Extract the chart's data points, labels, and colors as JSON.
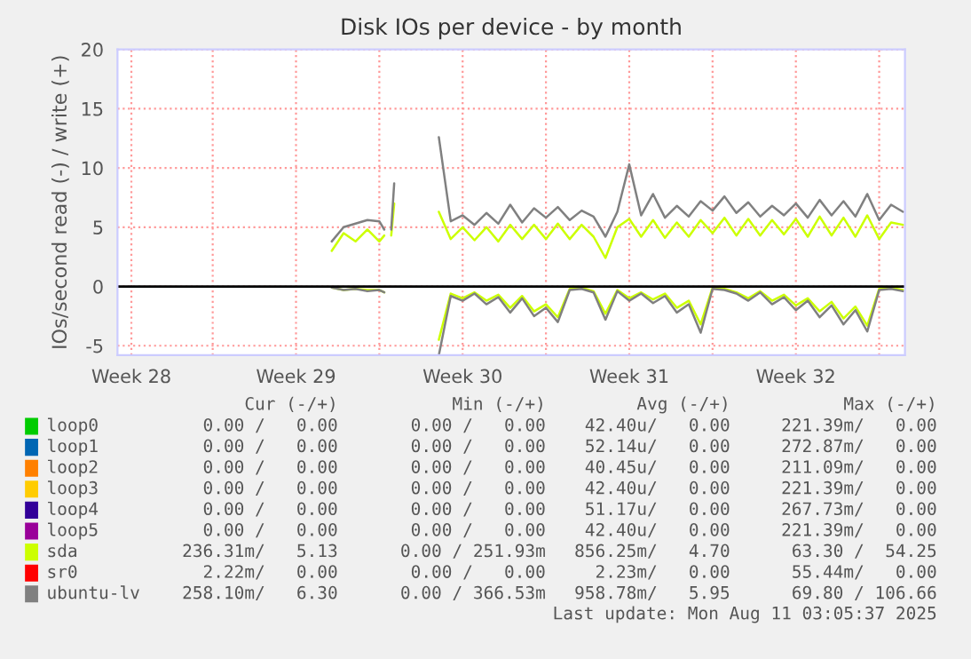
{
  "chart_data": {
    "type": "line",
    "title": "Disk IOs per device - by month",
    "ylabel": "IOs/second read (-) / write (+)",
    "x": [
      "2025-07-18T00:00",
      "2025-07-18T12:00",
      "2025-07-19T00:00",
      "2025-07-19T12:00",
      "2025-07-20T00:00",
      "2025-07-20T05:00",
      "2025-07-20T09:00",
      "2025-07-20T12:00",
      "2025-07-20T15:00",
      "2025-07-21T12:00",
      "2025-07-22T12:00",
      "2025-07-23T00:00",
      "2025-07-23T12:00",
      "2025-07-24T00:00",
      "2025-07-24T12:00",
      "2025-07-25T00:00",
      "2025-07-25T12:00",
      "2025-07-26T00:00",
      "2025-07-26T12:00",
      "2025-07-27T00:00",
      "2025-07-27T12:00",
      "2025-07-28T00:00",
      "2025-07-28T12:00",
      "2025-07-29T00:00",
      "2025-07-29T12:00",
      "2025-07-30T00:00",
      "2025-07-30T12:00",
      "2025-07-31T00:00",
      "2025-07-31T12:00",
      "2025-08-01T00:00",
      "2025-08-01T12:00",
      "2025-08-02T00:00",
      "2025-08-02T12:00",
      "2025-08-03T00:00",
      "2025-08-03T12:00",
      "2025-08-04T00:00",
      "2025-08-04T12:00",
      "2025-08-05T00:00",
      "2025-08-05T12:00",
      "2025-08-06T00:00",
      "2025-08-06T12:00",
      "2025-08-07T00:00",
      "2025-08-07T12:00",
      "2025-08-08T00:00",
      "2025-08-08T12:00",
      "2025-08-09T00:00",
      "2025-08-09T12:00",
      "2025-08-10T00:00",
      "2025-08-10T12:00",
      "2025-08-11T00:00"
    ],
    "series": [
      {
        "name": "loop0",
        "color": "#00cc00",
        "values": [
          null,
          null,
          null,
          null,
          null,
          null,
          null,
          null,
          null,
          null,
          null,
          null,
          null,
          null,
          null,
          null,
          null,
          null,
          null,
          null,
          null,
          null,
          null,
          null,
          null,
          null,
          null,
          null,
          null,
          null,
          null,
          null,
          null,
          null,
          null,
          null,
          null,
          null,
          null,
          null,
          null,
          null,
          null,
          null,
          null,
          null,
          null,
          null,
          null,
          null
        ]
      },
      {
        "name": "loop1",
        "color": "#0066b3",
        "values": [
          null,
          null,
          null,
          null,
          null,
          null,
          null,
          null,
          null,
          null,
          null,
          null,
          null,
          null,
          null,
          null,
          null,
          null,
          null,
          null,
          null,
          null,
          null,
          null,
          null,
          null,
          null,
          null,
          null,
          null,
          null,
          null,
          null,
          null,
          null,
          null,
          null,
          null,
          null,
          null,
          null,
          null,
          null,
          null,
          null,
          null,
          null,
          null,
          null,
          null
        ]
      },
      {
        "name": "loop2",
        "color": "#ff8000",
        "values": [
          null,
          null,
          null,
          null,
          null,
          null,
          null,
          null,
          null,
          null,
          null,
          null,
          null,
          null,
          null,
          null,
          null,
          null,
          null,
          null,
          null,
          null,
          null,
          null,
          null,
          null,
          null,
          null,
          null,
          null,
          null,
          null,
          null,
          null,
          null,
          null,
          null,
          null,
          null,
          null,
          null,
          null,
          null,
          null,
          null,
          null,
          null,
          null,
          null,
          null
        ]
      },
      {
        "name": "loop3",
        "color": "#ffcc00",
        "values": [
          null,
          null,
          null,
          null,
          null,
          null,
          null,
          null,
          null,
          null,
          null,
          null,
          null,
          null,
          null,
          null,
          null,
          null,
          null,
          null,
          null,
          null,
          null,
          null,
          null,
          null,
          null,
          null,
          null,
          null,
          null,
          null,
          null,
          null,
          null,
          null,
          null,
          null,
          null,
          null,
          null,
          null,
          null,
          null,
          null,
          null,
          null,
          null,
          null,
          null
        ]
      },
      {
        "name": "loop4",
        "color": "#330099",
        "values": [
          null,
          null,
          null,
          null,
          null,
          null,
          null,
          null,
          null,
          null,
          null,
          null,
          null,
          null,
          null,
          null,
          null,
          null,
          null,
          null,
          null,
          null,
          null,
          null,
          null,
          null,
          null,
          null,
          null,
          null,
          null,
          null,
          null,
          null,
          null,
          null,
          null,
          null,
          null,
          null,
          null,
          null,
          null,
          null,
          null,
          null,
          null,
          null,
          null,
          null
        ]
      },
      {
        "name": "loop5",
        "color": "#990099",
        "values": [
          null,
          null,
          null,
          null,
          null,
          null,
          null,
          null,
          null,
          null,
          null,
          null,
          null,
          null,
          null,
          null,
          null,
          null,
          null,
          null,
          null,
          null,
          null,
          null,
          null,
          null,
          null,
          null,
          null,
          null,
          null,
          null,
          null,
          null,
          null,
          null,
          null,
          null,
          null,
          null,
          null,
          null,
          null,
          null,
          null,
          null,
          null,
          null,
          null,
          null
        ]
      },
      {
        "name": "sda",
        "color": "#ccff00",
        "values": [
          3.0,
          4.5,
          3.8,
          4.8,
          3.8,
          4.3,
          null,
          4.3,
          7.0,
          null,
          6.3,
          4.0,
          5.0,
          3.9,
          5.0,
          3.8,
          5.2,
          4.0,
          5.2,
          4.0,
          5.3,
          4.0,
          5.2,
          4.2,
          2.4,
          5.0,
          5.7,
          4.2,
          5.6,
          4.1,
          5.4,
          4.2,
          5.6,
          4.5,
          5.8,
          4.3,
          5.7,
          4.3,
          5.6,
          4.4,
          5.7,
          4.2,
          5.9,
          4.3,
          5.8,
          4.2,
          6.0,
          4.0,
          5.4,
          5.2
        ]
      },
      {
        "color": "#ccff00",
        "values": [
          -0.1,
          -0.3,
          -0.2,
          -0.3,
          -0.3,
          -0.5,
          null,
          null,
          null,
          null,
          -4.5,
          -0.6,
          -1.0,
          -0.5,
          -1.2,
          -0.7,
          -1.8,
          -0.8,
          -2.1,
          -1.5,
          -2.6,
          -0.2,
          -0.1,
          -0.4,
          -2.3,
          -0.3,
          -1.0,
          -0.5,
          -1.1,
          -0.6,
          -1.8,
          -1.2,
          -3.2,
          -0.1,
          -0.2,
          -0.5,
          -1.0,
          -0.4,
          -1.2,
          -0.7,
          -1.6,
          -1.0,
          -2.1,
          -1.3,
          -2.7,
          -1.7,
          -3.3,
          -0.2,
          -0.1,
          -0.3
        ]
      },
      {
        "name": "sr0",
        "color": "#ff0000",
        "values": [
          null,
          null,
          null,
          null,
          null,
          null,
          null,
          null,
          null,
          null,
          null,
          null,
          null,
          null,
          null,
          null,
          null,
          null,
          null,
          null,
          null,
          null,
          null,
          null,
          null,
          null,
          null,
          null,
          null,
          null,
          null,
          null,
          null,
          null,
          null,
          null,
          null,
          null,
          null,
          null,
          null,
          null,
          null,
          null,
          null,
          null,
          null,
          null,
          null,
          null
        ]
      },
      {
        "name": "ubuntu-lv",
        "color": "#808080",
        "values": [
          3.8,
          5.0,
          5.3,
          5.6,
          5.5,
          4.8,
          null,
          4.8,
          8.7,
          null,
          12.6,
          5.5,
          6.0,
          5.2,
          6.2,
          5.3,
          6.9,
          5.4,
          6.6,
          5.8,
          6.7,
          5.6,
          6.4,
          5.9,
          4.2,
          6.3,
          10.3,
          6.0,
          7.8,
          5.8,
          6.8,
          5.9,
          7.2,
          6.4,
          7.6,
          6.2,
          7.1,
          5.9,
          6.8,
          6.0,
          7.0,
          5.8,
          7.3,
          6.0,
          7.2,
          5.9,
          7.8,
          5.6,
          6.9,
          6.3
        ]
      },
      {
        "color": "#808080",
        "values": [
          -0.1,
          -0.3,
          -0.2,
          -0.4,
          -0.3,
          -0.5,
          null,
          null,
          null,
          null,
          -5.8,
          -0.8,
          -1.2,
          -0.6,
          -1.5,
          -0.9,
          -2.2,
          -1.0,
          -2.5,
          -1.8,
          -3.0,
          -0.3,
          -0.2,
          -0.5,
          -2.8,
          -0.4,
          -1.2,
          -0.6,
          -1.4,
          -0.8,
          -2.2,
          -1.5,
          -3.9,
          -0.2,
          -0.3,
          -0.6,
          -1.2,
          -0.5,
          -1.5,
          -0.9,
          -2.0,
          -1.2,
          -2.6,
          -1.6,
          -3.2,
          -2.0,
          -3.8,
          -0.3,
          -0.2,
          -0.4
        ]
      }
    ],
    "xlim": [
      "2025-07-09T00:00",
      "2025-08-11T02:00"
    ],
    "xticks": [
      {
        "value": "2025-07-09T14:00",
        "label": "Week 28"
      },
      {
        "value": "2025-07-13T00:00",
        "label": null
      },
      {
        "value": "2025-07-16T12:00",
        "label": "Week 29"
      },
      {
        "value": "2025-07-20T00:00",
        "label": null
      },
      {
        "value": "2025-07-23T12:00",
        "label": "Week 30"
      },
      {
        "value": "2025-07-27T00:00",
        "label": null
      },
      {
        "value": "2025-07-30T12:00",
        "label": "Week 31"
      },
      {
        "value": "2025-08-03T00:00",
        "label": null
      },
      {
        "value": "2025-08-06T12:00",
        "label": "Week 32"
      },
      {
        "value": "2025-08-10T00:00",
        "label": null
      }
    ],
    "ylim": [
      -5.8,
      20
    ],
    "yticks": [
      -5,
      0,
      5,
      10,
      15,
      20
    ],
    "grid": true,
    "legend": "bottom",
    "line_style": "solid",
    "ref_lines": [
      {
        "axis": "y",
        "value": 0,
        "color": "#000000"
      }
    ],
    "annotations": [
      "Cur (-/+)",
      "Min (-/+)",
      "Avg (-/+)",
      "Max (-/+)",
      "0.00 /   0.00",
      "0.00 /   0.00",
      "42.40u/   0.00",
      "221.39m/   0.00",
      "0.00 /   0.00",
      "0.00 /   0.00",
      "52.14u/   0.00",
      "272.87m/   0.00",
      "0.00 /   0.00",
      "0.00 /   0.00",
      "40.45u/   0.00",
      "211.09m/   0.00",
      "0.00 /   0.00",
      "0.00 /   0.00",
      "42.40u/   0.00",
      "221.39m/   0.00",
      "0.00 /   0.00",
      "0.00 /   0.00",
      "51.17u/   0.00",
      "267.73m/   0.00",
      "0.00 /   0.00",
      "0.00 /   0.00",
      "42.40u/   0.00",
      "221.39m/   0.00",
      "236.31m/   5.13",
      "0.00 / 251.93m",
      "856.25m/   4.70",
      "63.30 /  54.25",
      "2.22m/   0.00",
      "0.00 /   0.00",
      "2.23m/   0.00",
      "55.44m/   0.00",
      "258.10m/   6.30",
      "0.00 / 366.53m",
      "958.78m/   5.95",
      "69.80 / 106.66",
      "Last update: Mon Aug 11 03:05:37 2025"
    ]
  }
}
